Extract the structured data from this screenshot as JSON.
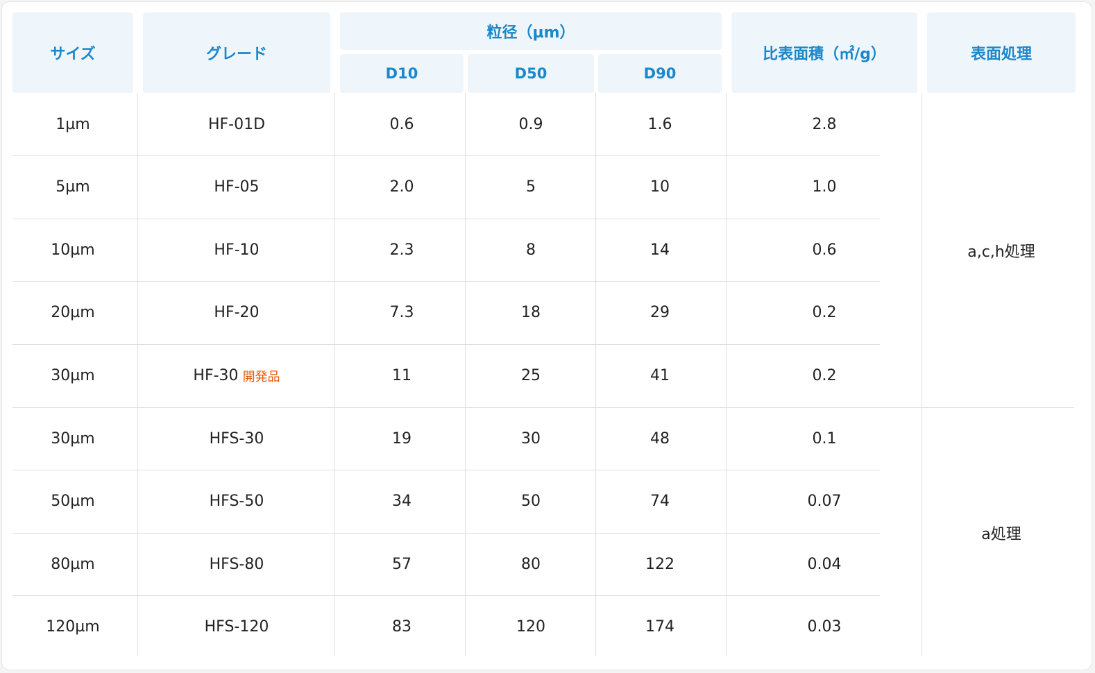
{
  "header": {
    "size": "サイズ",
    "grade": "グレード",
    "particle": "粒径（µm）",
    "d10": "D10",
    "d50": "D50",
    "d90": "D90",
    "surface_area": "比表面積（㎡/g）",
    "treatment": "表面処理"
  },
  "rows": [
    {
      "size": "1µm",
      "grade": "HF-01D",
      "tag": "",
      "d10": "0.6",
      "d50": "0.9",
      "d90": "1.6",
      "area": "2.8"
    },
    {
      "size": "5µm",
      "grade": "HF-05",
      "tag": "",
      "d10": "2.0",
      "d50": "5",
      "d90": "10",
      "area": "1.0"
    },
    {
      "size": "10µm",
      "grade": "HF-10",
      "tag": "",
      "d10": "2.3",
      "d50": "8",
      "d90": "14",
      "area": "0.6"
    },
    {
      "size": "20µm",
      "grade": "HF-20",
      "tag": "",
      "d10": "7.3",
      "d50": "18",
      "d90": "29",
      "area": "0.2"
    },
    {
      "size": "30µm",
      "grade": "HF-30",
      "tag": "開発品",
      "d10": "11",
      "d50": "25",
      "d90": "41",
      "area": "0.2"
    },
    {
      "size": "30µm",
      "grade": "HFS-30",
      "tag": "",
      "d10": "19",
      "d50": "30",
      "d90": "48",
      "area": "0.1"
    },
    {
      "size": "50µm",
      "grade": "HFS-50",
      "tag": "",
      "d10": "34",
      "d50": "50",
      "d90": "74",
      "area": "0.07"
    },
    {
      "size": "80µm",
      "grade": "HFS-80",
      "tag": "",
      "d10": "57",
      "d50": "80",
      "d90": "122",
      "area": "0.04"
    },
    {
      "size": "120µm",
      "grade": "HFS-120",
      "tag": "",
      "d10": "83",
      "d50": "120",
      "d90": "174",
      "area": "0.03"
    }
  ],
  "treatments": [
    {
      "label": "a,c,h処理"
    },
    {
      "label": "a処理"
    }
  ],
  "colors": {
    "header_bg": "#eef6fb",
    "header_text": "#1b87cb",
    "tag_text": "#e05a0a",
    "body_text": "#222222"
  }
}
